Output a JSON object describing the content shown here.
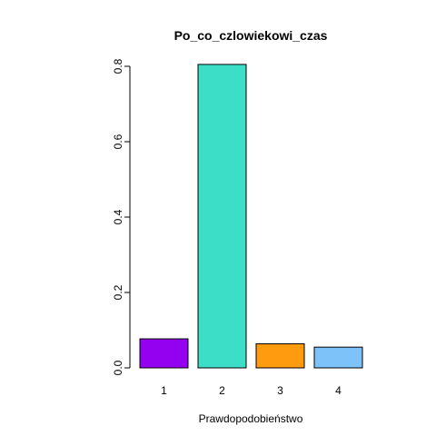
{
  "chart_data": {
    "type": "bar",
    "title": "Po_co_czlowiekowi_czas",
    "xlabel": "Prawdopodobieństwo",
    "ylabel": "",
    "categories": [
      "1",
      "2",
      "3",
      "4"
    ],
    "values": [
      0.077,
      0.805,
      0.064,
      0.055
    ],
    "colors": [
      "#9400F0",
      "#3CDEC8",
      "#FF9B0F",
      "#7DC3FA"
    ],
    "ylim": [
      0,
      0.8
    ],
    "yticks": [
      0.0,
      0.2,
      0.4,
      0.6,
      0.8
    ],
    "ytick_labels": [
      "0.0",
      "0.2",
      "0.4",
      "0.6",
      "0.8"
    ],
    "grid": false,
    "legend": "none"
  }
}
